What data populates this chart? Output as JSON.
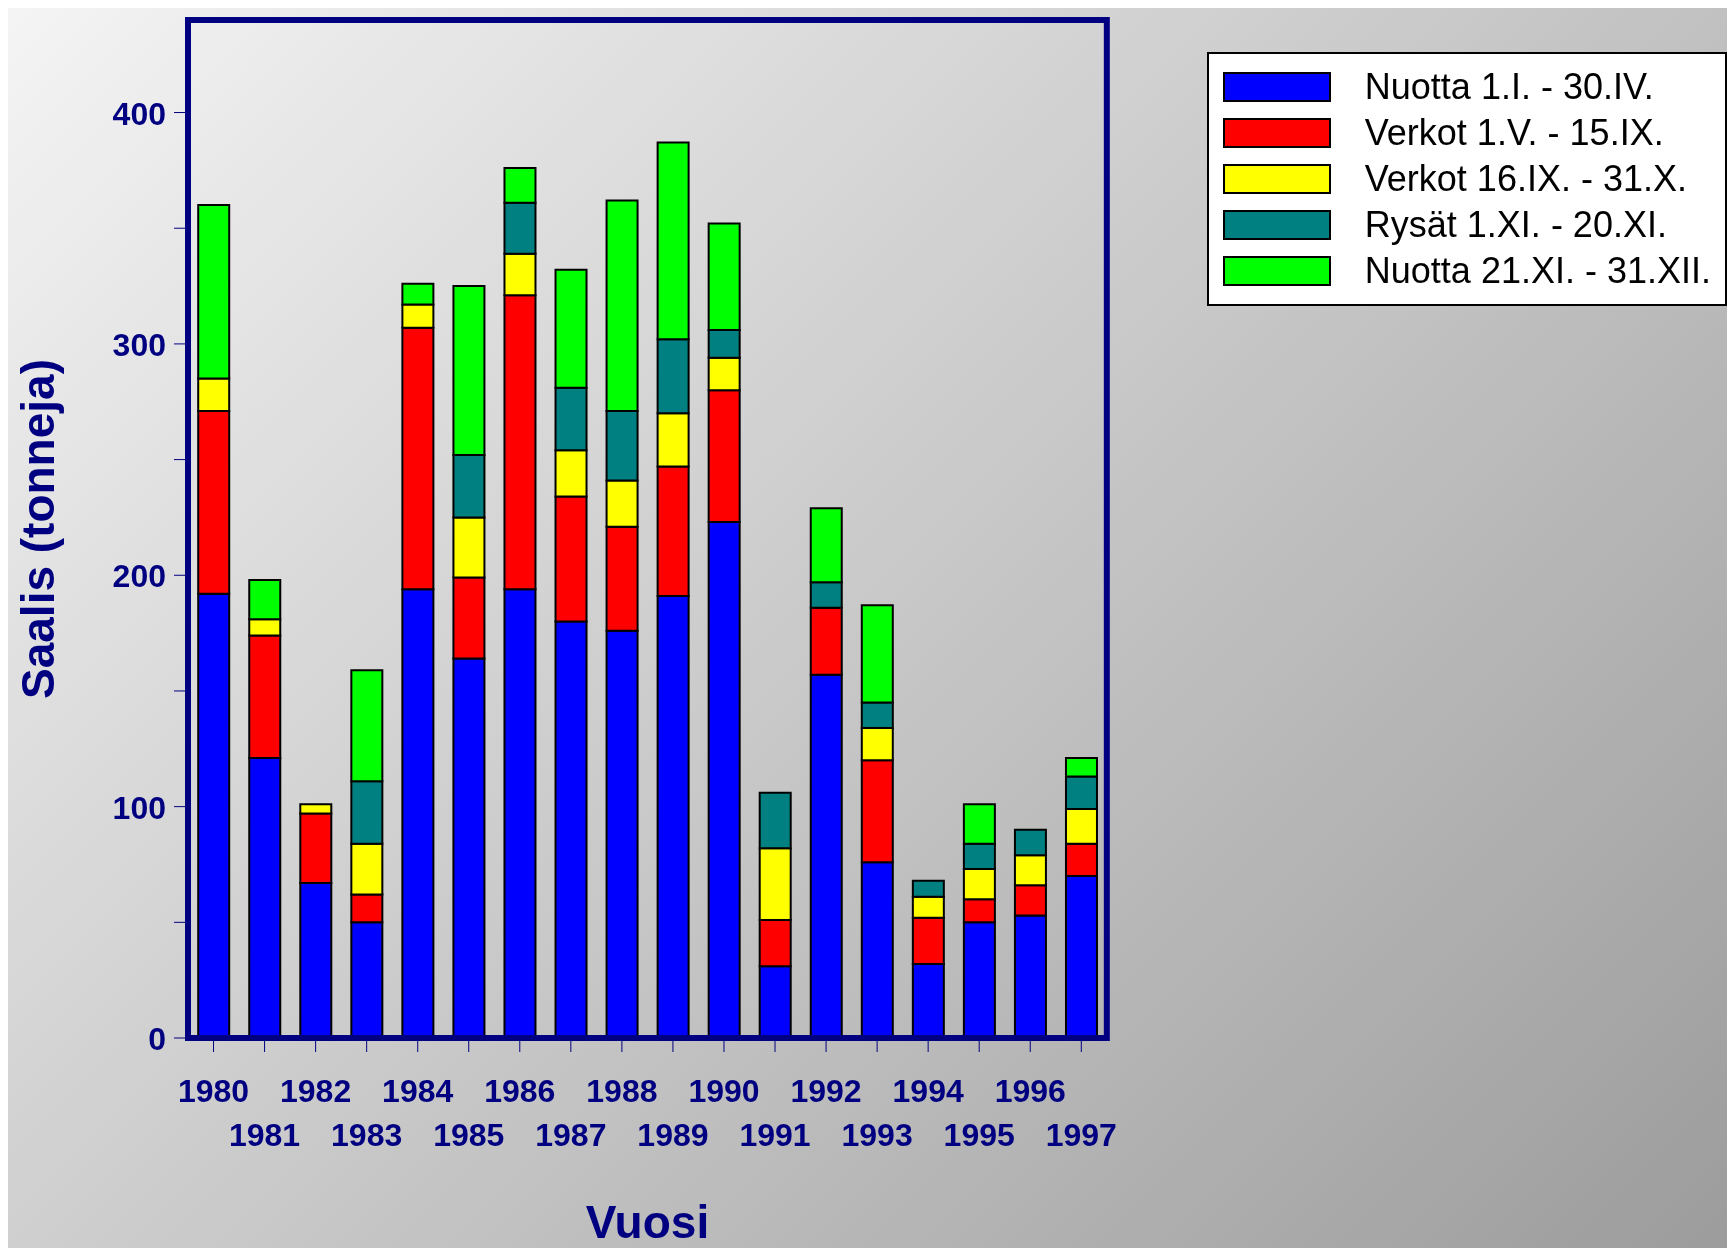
{
  "chart_data": {
    "type": "bar",
    "stacked": true,
    "xlabel": "Vuosi",
    "ylabel": "Saalis (tonneja)",
    "categories": [
      "1980",
      "1981",
      "1982",
      "1983",
      "1984",
      "1985",
      "1986",
      "1987",
      "1988",
      "1989",
      "1990",
      "1991",
      "1992",
      "1993",
      "1994",
      "1995",
      "1996",
      "1997"
    ],
    "series": [
      {
        "name": "Nuotta 1.I. - 30.IV.",
        "color": "#0000ff",
        "values": [
          192,
          121,
          67,
          50,
          194,
          164,
          194,
          180,
          176,
          191,
          223,
          31,
          157,
          76,
          32,
          50,
          53,
          70
        ]
      },
      {
        "name": "Verkot 1.V. - 15.IX.",
        "color": "#ff0000",
        "values": [
          79,
          53,
          30,
          12,
          113,
          35,
          127,
          54,
          45,
          56,
          57,
          20,
          29,
          44,
          20,
          10,
          13,
          14
        ]
      },
      {
        "name": "Verkot 16.IX. - 31.X.",
        "color": "#ffff00",
        "values": [
          14,
          7,
          4,
          22,
          10,
          26,
          18,
          20,
          20,
          23,
          14,
          31,
          0,
          14,
          9,
          13,
          13,
          15
        ]
      },
      {
        "name": "Rysät 1.XI. - 20.XI.",
        "color": "#008080",
        "values": [
          0,
          0,
          0,
          27,
          0,
          27,
          22,
          27,
          30,
          32,
          12,
          24,
          11,
          11,
          7,
          11,
          11,
          14
        ]
      },
      {
        "name": "Nuotta 21.XI. - 31.XII.",
        "color": "#00ff00",
        "values": [
          75,
          17,
          0,
          48,
          9,
          73,
          15,
          51,
          91,
          85,
          46,
          0,
          32,
          42,
          0,
          17,
          0,
          8
        ]
      }
    ],
    "ylim": [
      0,
      440
    ],
    "yticks": [
      0,
      {
        "value": 50,
        "label": null
      },
      100,
      {
        "value": 150,
        "label": null
      },
      200,
      {
        "value": 250,
        "label": null
      },
      300,
      {
        "value": 350,
        "label": null
      },
      400
    ],
    "grid": false,
    "legend": "top right"
  }
}
